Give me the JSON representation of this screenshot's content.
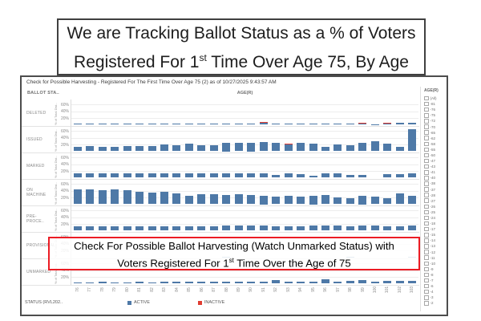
{
  "title": {
    "line1": "We are Tracking Ballot Status as a % of Voters",
    "line2_pre": "Registered For 1",
    "line2_sup": "st",
    "line2_post": " Time Over Age 75, By Age"
  },
  "dashboard": {
    "header": "Check for Possible Harvesting - Registered For The First Time Over Age 75 (2) as of 10/27/2025 9:43:57 AM",
    "row_dimension_label": "BALLOT STA..",
    "column_dimension_label": "AGE(R)"
  },
  "chart_data": {
    "type": "bar",
    "title": "Check for Possible Harvesting - Registered For The First Time Over Age 75 (2)",
    "layout": "small-multiples, one row per ballot status, shared age x-axis",
    "xlabel": "AGE(R)",
    "ylabel": "% of Total Dist..",
    "y_ticks": [
      "60%",
      "40%",
      "20%"
    ],
    "ylim": [
      0,
      75
    ],
    "grid": true,
    "categories": [
      "76",
      "77",
      "78",
      "79",
      "80",
      "81",
      "82",
      "83",
      "84",
      "85",
      "86",
      "87",
      "88",
      "89",
      "90",
      "91",
      "92",
      "93",
      "94",
      "95",
      "96",
      "97",
      "98",
      "99",
      "100",
      "101",
      "102",
      "103"
    ],
    "series": [
      {
        "name": "DELETED",
        "values": [
          3,
          3,
          3,
          3,
          3,
          4,
          3,
          3,
          3,
          3,
          3,
          3,
          4,
          4,
          3,
          5,
          4,
          3,
          4,
          3,
          3,
          4,
          3,
          3,
          2,
          4,
          6,
          5
        ],
        "inactive": [
          0,
          0,
          0,
          0,
          0,
          0,
          0,
          0,
          0,
          0,
          0,
          0,
          0,
          0,
          0,
          1,
          0,
          0,
          0,
          0,
          0,
          0,
          0,
          1,
          0,
          1,
          0,
          0
        ]
      },
      {
        "name": "ISSUED",
        "values": [
          14,
          15,
          13,
          13,
          16,
          15,
          15,
          20,
          18,
          22,
          17,
          18,
          25,
          24,
          25,
          27,
          24,
          20,
          26,
          22,
          12,
          20,
          17,
          26,
          30,
          23,
          12,
          65
        ],
        "inactive": [
          0,
          0,
          0,
          0,
          0,
          0,
          0,
          0,
          0,
          0,
          0,
          0,
          0,
          0,
          0,
          0,
          0,
          1,
          0,
          0,
          0,
          0,
          0,
          0,
          0,
          0,
          0,
          0
        ]
      },
      {
        "name": "MARKED",
        "values": [
          13,
          13,
          13,
          13,
          14,
          13,
          13,
          13,
          12,
          13,
          13,
          13,
          14,
          13,
          14,
          14,
          8,
          12,
          10,
          7,
          14,
          13,
          8,
          8,
          0,
          11,
          11,
          14
        ],
        "inactive": [
          0,
          0,
          0,
          0,
          0,
          0,
          0,
          0,
          0,
          0,
          0,
          0,
          0,
          0,
          0,
          0,
          0,
          0,
          0,
          0,
          0,
          0,
          0,
          0,
          0,
          0,
          0,
          0
        ]
      },
      {
        "name": "ON MACHINE",
        "values": [
          45,
          44,
          42,
          45,
          41,
          36,
          35,
          38,
          33,
          26,
          30,
          29,
          28,
          30,
          28,
          25,
          22,
          26,
          22,
          25,
          28,
          20,
          17,
          25,
          22,
          18,
          33,
          24
        ],
        "inactive": [
          0,
          0,
          0,
          0,
          0,
          0,
          0,
          0,
          0,
          0,
          0,
          0,
          0,
          0,
          0,
          0,
          0,
          0,
          0,
          0,
          0,
          0,
          0,
          0,
          0,
          0,
          0,
          0
        ]
      },
      {
        "name": "PRE-PROCE..",
        "values": [
          13,
          14,
          13,
          13,
          14,
          13,
          13,
          14,
          13,
          13,
          14,
          13,
          16,
          16,
          16,
          15,
          13,
          13,
          13,
          16,
          16,
          16,
          14,
          15,
          16,
          13,
          14,
          15
        ],
        "inactive": [
          0,
          0,
          0,
          0,
          0,
          0,
          0,
          0,
          0,
          0,
          0,
          0,
          0,
          0,
          0,
          0,
          0,
          0,
          0,
          0,
          0,
          0,
          0,
          0,
          0,
          0,
          0,
          0
        ]
      },
      {
        "name": "PROVISIONAL",
        "values": [
          0,
          0,
          0,
          0,
          0,
          0,
          0,
          0,
          0,
          0,
          0,
          0,
          1,
          0,
          0,
          0,
          0,
          0,
          0,
          0,
          0,
          0,
          1,
          0,
          0,
          0,
          0,
          1
        ],
        "inactive": [
          0,
          0,
          0,
          0,
          0,
          0,
          0,
          0,
          0,
          0,
          0,
          0,
          0,
          0,
          0,
          0,
          0,
          0,
          0,
          0,
          0,
          0,
          0,
          0,
          0,
          0,
          0,
          0
        ]
      },
      {
        "name": "UNMARKED",
        "values": [
          4,
          4,
          5,
          4,
          4,
          5,
          4,
          5,
          5,
          5,
          6,
          5,
          6,
          5,
          5,
          6,
          11,
          5,
          5,
          6,
          12,
          6,
          8,
          10,
          6,
          9,
          8,
          9
        ],
        "inactive": [
          0,
          0,
          0,
          0,
          0,
          0,
          0,
          0,
          0,
          0,
          0,
          0,
          0,
          0,
          0,
          0,
          0,
          0,
          0,
          0,
          0,
          0,
          0,
          0,
          0,
          0,
          0,
          0
        ]
      }
    ]
  },
  "legend": {
    "field_label": "STATUS (RVL202..",
    "items": [
      {
        "label": "ACTIVE",
        "color": "#4e79a7"
      },
      {
        "label": "INACTIVE",
        "color": "#e03c31"
      }
    ]
  },
  "filter": {
    "title": "AGE(R)",
    "items": [
      "(All)",
      "-81",
      "-76",
      "-75",
      "-72",
      "-70",
      "-65",
      "-62",
      "-58",
      "-55",
      "-50",
      "-47",
      "-43",
      "-41",
      "-40",
      "-38",
      "-37",
      "-28",
      "-27",
      "-26",
      "-25",
      "-24",
      "-18",
      "-17",
      "-15",
      "-14",
      "-13",
      "-12",
      "-11",
      "-10",
      "-9",
      "-8",
      "-7",
      "-6",
      "-4",
      "-3",
      "-2"
    ]
  },
  "annotation": {
    "line1": "Check For Possible Ballot Harvesting (Watch Unmarked Status) with",
    "line2_pre": "Voters Registered For 1",
    "line2_sup": "st",
    "line2_post": " Time Over the Age of 75"
  },
  "colors": {
    "active_bar": "#4e79a7",
    "inactive_bar": "#e03c31",
    "annotation_border": "#ec1c24"
  }
}
